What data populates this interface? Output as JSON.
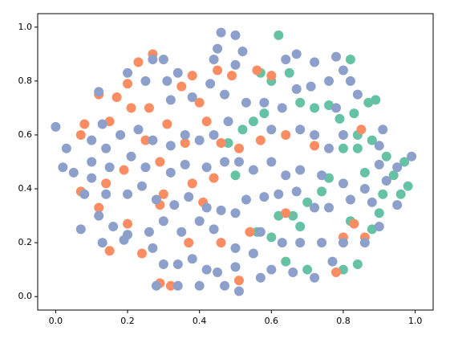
{
  "chart_data": {
    "type": "scatter",
    "xlim": [
      -0.05,
      1.05
    ],
    "ylim": [
      -0.05,
      1.05
    ],
    "xticks": [
      {
        "value": 0,
        "label": "0.0"
      },
      0.2,
      0.4,
      0.6,
      0.8,
      {
        "value": 1,
        "label": "1.0"
      }
    ],
    "yticks": [
      {
        "value": 0,
        "label": "0.0"
      },
      0.2,
      0.4,
      0.6,
      0.8,
      {
        "value": 1,
        "label": "1.0"
      }
    ],
    "series": [
      {
        "color": "#66c2a5",
        "x": [
          0.62,
          0.57,
          0.6,
          0.65,
          0.55,
          0.52,
          0.58,
          0.68,
          0.72,
          0.76,
          0.83,
          0.87,
          0.84,
          0.88,
          0.8,
          0.84,
          0.92,
          0.97,
          0.94,
          0.98,
          0.91,
          0.96,
          0.86,
          0.76,
          0.74,
          0.7,
          0.66,
          0.62,
          0.6,
          0.68,
          0.82,
          0.88,
          0.9,
          0.84,
          0.8,
          0.7,
          0.64,
          0.56,
          0.48,
          0.5,
          0.79,
          0.82,
          0.89
        ],
        "values": [
          0.97,
          0.83,
          0.8,
          0.83,
          0.65,
          0.62,
          0.68,
          0.72,
          0.7,
          0.71,
          0.68,
          0.72,
          0.6,
          0.58,
          0.55,
          0.55,
          0.52,
          0.5,
          0.45,
          0.41,
          0.38,
          0.38,
          0.46,
          0.44,
          0.39,
          0.35,
          0.3,
          0.3,
          0.22,
          0.26,
          0.28,
          0.25,
          0.31,
          0.12,
          0.1,
          0.1,
          0.13,
          0.24,
          0.57,
          0.45,
          0.66,
          0.88,
          0.73
        ]
      },
      {
        "color": "#fc8d62",
        "x": [
          0.23,
          0.27,
          0.2,
          0.17,
          0.12,
          0.08,
          0.07,
          0.15,
          0.21,
          0.26,
          0.31,
          0.35,
          0.38,
          0.4,
          0.45,
          0.49,
          0.42,
          0.46,
          0.51,
          0.57,
          0.64,
          0.72,
          0.85,
          0.29,
          0.19,
          0.14,
          0.07,
          0.12,
          0.3,
          0.38,
          0.44,
          0.29,
          0.2,
          0.15,
          0.24,
          0.29,
          0.32,
          0.37,
          0.46,
          0.51,
          0.54,
          0.64,
          0.8,
          0.83,
          0.86,
          0.78,
          0.56,
          0.6,
          0.36,
          0.41,
          0.25
        ],
        "values": [
          0.87,
          0.9,
          0.79,
          0.74,
          0.75,
          0.64,
          0.6,
          0.65,
          0.7,
          0.7,
          0.64,
          0.78,
          0.82,
          0.72,
          0.84,
          0.82,
          0.65,
          0.57,
          0.55,
          0.58,
          0.6,
          0.56,
          0.62,
          0.5,
          0.47,
          0.42,
          0.39,
          0.33,
          0.38,
          0.42,
          0.44,
          0.34,
          0.27,
          0.17,
          0.16,
          0.05,
          0.04,
          0.2,
          0.2,
          0.06,
          0.24,
          0.31,
          0.22,
          0.27,
          0.22,
          0.09,
          0.84,
          0.82,
          0.57,
          0.35,
          0.58
        ]
      },
      {
        "color": "#8da0cb",
        "x": [
          0.46,
          0.5,
          0.45,
          0.52,
          0.5,
          0.44,
          0.43,
          0.47,
          0.38,
          0.32,
          0.34,
          0.3,
          0.27,
          0.25,
          0.31,
          0.2,
          0.12,
          0.13,
          0.1,
          0.03,
          0.0,
          0.02,
          0.05,
          0.1,
          0.14,
          0.18,
          0.23,
          0.27,
          0.32,
          0.36,
          0.4,
          0.44,
          0.48,
          0.53,
          0.58,
          0.6,
          0.63,
          0.67,
          0.71,
          0.76,
          0.82,
          0.84,
          0.8,
          0.78,
          0.64,
          0.67,
          0.72,
          0.78,
          0.68,
          0.72,
          0.76,
          0.8,
          0.91,
          0.9,
          0.9,
          0.95,
          0.99,
          0.92,
          0.86,
          0.8,
          0.74,
          0.68,
          0.64,
          0.6,
          0.55,
          0.51,
          0.47,
          0.42,
          0.36,
          0.32,
          0.25,
          0.21,
          0.15,
          0.1,
          0.08,
          0.14,
          0.2,
          0.24,
          0.28,
          0.33,
          0.37,
          0.42,
          0.46,
          0.5,
          0.53,
          0.58,
          0.62,
          0.67,
          0.72,
          0.76,
          0.82,
          0.88,
          0.95,
          0.9,
          0.86,
          0.8,
          0.74,
          0.68,
          0.63,
          0.57,
          0.55,
          0.6,
          0.66,
          0.72,
          0.77,
          0.5,
          0.44,
          0.4,
          0.35,
          0.3,
          0.26,
          0.2,
          0.16,
          0.12,
          0.07,
          0.13,
          0.19,
          0.27,
          0.3,
          0.34,
          0.38,
          0.42,
          0.45,
          0.5,
          0.57,
          0.51,
          0.28,
          0.34,
          0.4,
          0.47
        ],
        "values": [
          0.98,
          0.97,
          0.92,
          0.91,
          0.86,
          0.88,
          0.79,
          0.75,
          0.74,
          0.73,
          0.83,
          0.88,
          0.88,
          0.8,
          0.8,
          0.83,
          0.76,
          0.64,
          0.58,
          0.55,
          0.63,
          0.48,
          0.46,
          0.5,
          0.55,
          0.6,
          0.62,
          0.58,
          0.56,
          0.6,
          0.58,
          0.6,
          0.65,
          0.72,
          0.72,
          0.62,
          0.7,
          0.77,
          0.78,
          0.8,
          0.8,
          0.75,
          0.84,
          0.89,
          0.88,
          0.9,
          0.87,
          0.7,
          0.62,
          0.6,
          0.55,
          0.6,
          0.62,
          0.56,
          0.49,
          0.48,
          0.52,
          0.43,
          0.4,
          0.42,
          0.45,
          0.47,
          0.45,
          0.5,
          0.47,
          0.5,
          0.5,
          0.48,
          0.49,
          0.46,
          0.48,
          0.52,
          0.48,
          0.44,
          0.38,
          0.38,
          0.38,
          0.41,
          0.36,
          0.34,
          0.37,
          0.33,
          0.32,
          0.31,
          0.36,
          0.37,
          0.38,
          0.39,
          0.33,
          0.33,
          0.36,
          0.35,
          0.34,
          0.26,
          0.2,
          0.2,
          0.2,
          0.2,
          0.2,
          0.24,
          0.16,
          0.1,
          0.09,
          0.07,
          0.13,
          0.18,
          0.25,
          0.28,
          0.24,
          0.28,
          0.24,
          0.23,
          0.26,
          0.3,
          0.25,
          0.2,
          0.21,
          0.18,
          0.12,
          0.12,
          0.14,
          0.1,
          0.09,
          0.11,
          0.07,
          0.02,
          0.04,
          0.04,
          0.04,
          0.04
        ]
      }
    ]
  }
}
